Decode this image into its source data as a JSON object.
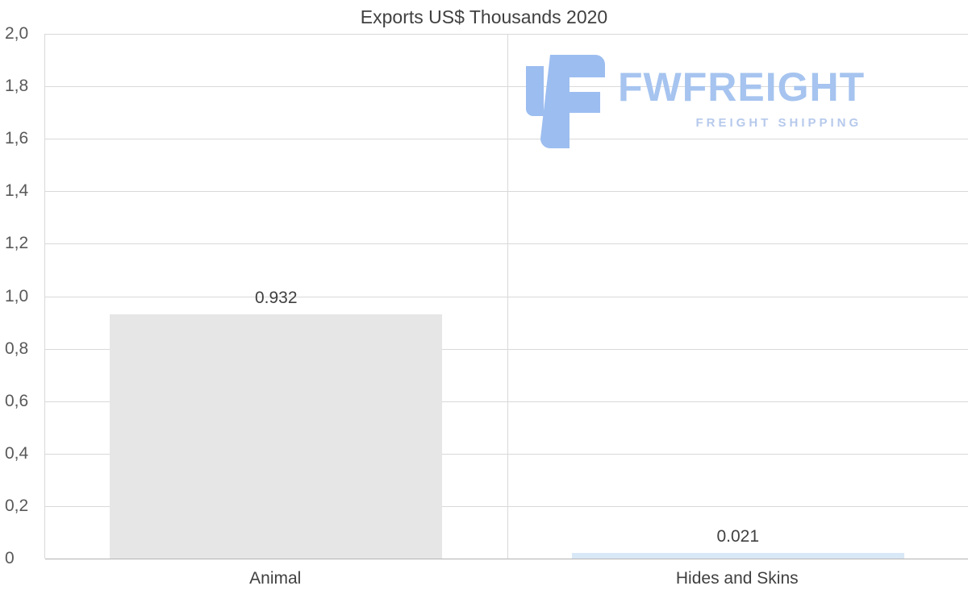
{
  "title": "Exports US$ Thousands 2020",
  "logo": {
    "brand": "FWFREIGHT",
    "tagline": "FREIGHT SHIPPING",
    "icon_color": "#9cbdf0",
    "text_color": "#a6c4ef"
  },
  "chart_data": {
    "type": "bar",
    "title": "Exports US$ Thousands 2020",
    "categories": [
      "Animal",
      "Hides and Skins"
    ],
    "values": [
      0.932,
      0.021
    ],
    "value_labels": [
      "0.932",
      "0.021"
    ],
    "bar_colors": [
      "#e6e6e6",
      "#d9e8f6"
    ],
    "xlabel": "",
    "ylabel": "",
    "ylim": [
      0,
      2
    ],
    "ytick_labels": [
      "2,0",
      "1,8",
      "1,6",
      "1,4",
      "1,2",
      "1,0",
      "0,8",
      "0,6",
      "0,4",
      "0,2",
      "0"
    ],
    "grid": true,
    "legend": false
  }
}
